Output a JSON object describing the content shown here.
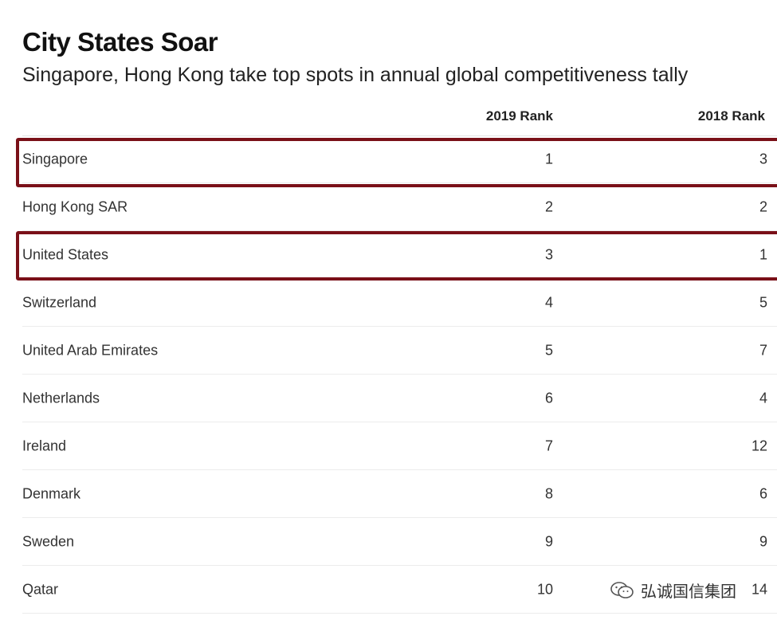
{
  "chart_data": {
    "type": "table",
    "title": "City States Soar",
    "subtitle": "Singapore, Hong Kong take top spots in annual global competitiveness tally",
    "columns": [
      "",
      "2019 Rank",
      "2018 Rank"
    ],
    "rows": [
      {
        "country": "Singapore",
        "rank_2019": "1",
        "rank_2018": "3",
        "highlighted": true
      },
      {
        "country": "Hong Kong SAR",
        "rank_2019": "2",
        "rank_2018": "2",
        "highlighted": false
      },
      {
        "country": "United States",
        "rank_2019": "3",
        "rank_2018": "1",
        "highlighted": true
      },
      {
        "country": "Switzerland",
        "rank_2019": "4",
        "rank_2018": "5",
        "highlighted": false
      },
      {
        "country": "United Arab Emirates",
        "rank_2019": "5",
        "rank_2018": "7",
        "highlighted": false
      },
      {
        "country": "Netherlands",
        "rank_2019": "6",
        "rank_2018": "4",
        "highlighted": false
      },
      {
        "country": "Ireland",
        "rank_2019": "7",
        "rank_2018": "12",
        "highlighted": false
      },
      {
        "country": "Denmark",
        "rank_2019": "8",
        "rank_2018": "6",
        "highlighted": false
      },
      {
        "country": "Sweden",
        "rank_2019": "9",
        "rank_2018": "9",
        "highlighted": false
      },
      {
        "country": "Qatar",
        "rank_2019": "10",
        "rank_2018": "14",
        "highlighted": false
      }
    ]
  },
  "watermark": {
    "text": "弘诚国信集团",
    "icon": "wechat-icon"
  },
  "colors": {
    "highlight_border": "#7a1018",
    "text": "#333333",
    "rule": "#ececec"
  }
}
